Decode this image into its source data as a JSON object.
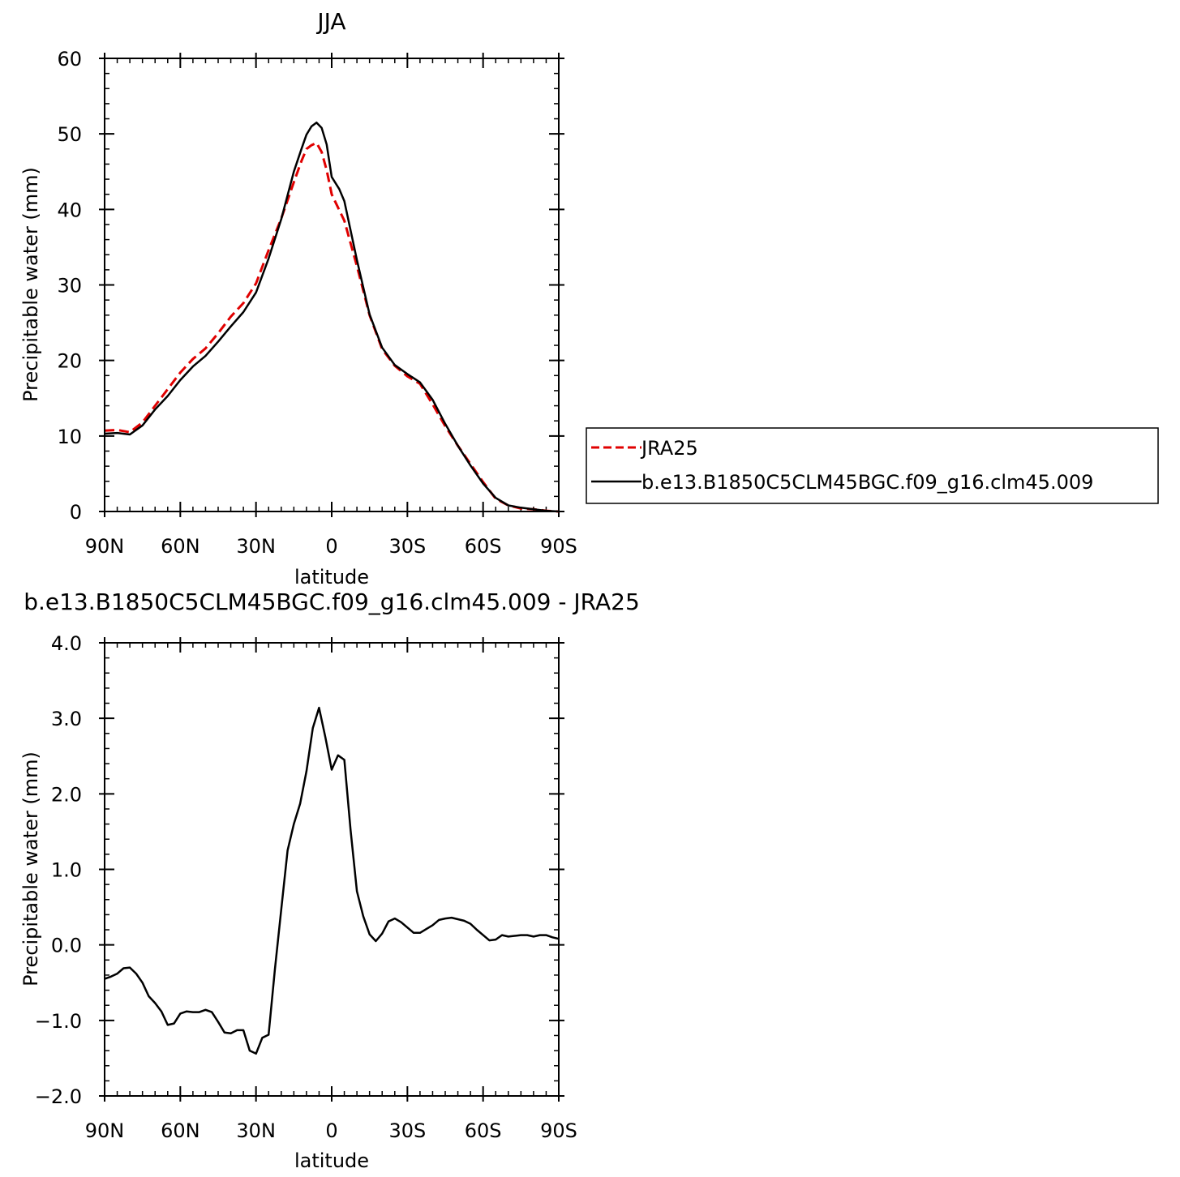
{
  "chart_data": [
    {
      "type": "line",
      "title": "JJA",
      "xlabel": "latitude",
      "ylabel": "Precipitable water (mm)",
      "xlim": [
        90,
        -90
      ],
      "ylim": [
        0,
        60
      ],
      "x_ticks": [
        {
          "value": 90,
          "label": "90N"
        },
        {
          "value": 60,
          "label": "60N"
        },
        {
          "value": 30,
          "label": "30N"
        },
        {
          "value": 0,
          "label": "0"
        },
        {
          "value": -30,
          "label": "30S"
        },
        {
          "value": -60,
          "label": "60S"
        },
        {
          "value": -90,
          "label": "90S"
        }
      ],
      "y_ticks": [
        {
          "value": 0,
          "label": "0"
        },
        {
          "value": 10,
          "label": "10"
        },
        {
          "value": 20,
          "label": "20"
        },
        {
          "value": 30,
          "label": "30"
        },
        {
          "value": 40,
          "label": "40"
        },
        {
          "value": 50,
          "label": "50"
        },
        {
          "value": 60,
          "label": "60"
        }
      ],
      "legend_position": "right",
      "series": [
        {
          "name": "JRA25",
          "color": "#e00000",
          "dash": "dashed",
          "x": [
            90,
            85,
            80,
            75,
            70,
            65,
            60,
            55,
            50,
            45,
            40,
            35,
            30,
            25,
            20,
            15,
            12,
            10,
            8,
            6,
            4,
            2,
            0,
            -5,
            -10,
            -15,
            -20,
            -25,
            -30,
            -35,
            -40,
            -45,
            -50,
            -55,
            -60,
            -65,
            -70,
            -75,
            -80,
            -85,
            -90
          ],
          "y": [
            10.7,
            10.8,
            10.5,
            11.8,
            14.0,
            16.2,
            18.4,
            20.2,
            21.6,
            23.6,
            25.8,
            27.6,
            30.2,
            34.6,
            38.8,
            43.6,
            46.4,
            48.0,
            48.5,
            48.8,
            47.6,
            45.2,
            42.0,
            38.5,
            32.5,
            26.0,
            21.5,
            19.3,
            17.9,
            16.9,
            14.2,
            11.3,
            8.7,
            6.3,
            3.9,
            1.7,
            0.8,
            0.4,
            0.3,
            0.1,
            0.0
          ]
        },
        {
          "name": "b.e13.B1850C5CLM45BGC.f09_g16.clm45.009",
          "color": "#000000",
          "dash": "solid",
          "x": [
            90,
            85,
            80,
            75,
            70,
            65,
            60,
            55,
            50,
            45,
            40,
            35,
            30,
            25,
            20,
            15,
            12,
            10,
            8,
            6,
            4,
            2,
            0,
            -3,
            -5,
            -10,
            -15,
            -20,
            -25,
            -30,
            -35,
            -40,
            -45,
            -50,
            -55,
            -60,
            -65,
            -70,
            -75,
            -80,
            -85,
            -90
          ],
          "y": [
            10.3,
            10.4,
            10.2,
            11.4,
            13.5,
            15.3,
            17.4,
            19.2,
            20.6,
            22.5,
            24.5,
            26.4,
            29.0,
            33.5,
            38.7,
            45.0,
            48.0,
            49.9,
            51.0,
            51.5,
            50.8,
            48.6,
            44.3,
            42.7,
            41.1,
            33.3,
            26.1,
            21.7,
            19.4,
            18.2,
            17.1,
            14.8,
            11.6,
            8.7,
            6.1,
            3.7,
            1.8,
            0.8,
            0.5,
            0.3,
            0.1,
            0.0
          ]
        }
      ]
    },
    {
      "type": "line",
      "title": "b.e13.B1850C5CLM45BGC.f09_g16.clm45.009 - JRA25",
      "xlabel": "latitude",
      "ylabel": "Precipitable water (mm)",
      "xlim": [
        90,
        -90
      ],
      "ylim": [
        -2.0,
        4.0
      ],
      "x_ticks": [
        {
          "value": 90,
          "label": "90N"
        },
        {
          "value": 60,
          "label": "60N"
        },
        {
          "value": 30,
          "label": "30N"
        },
        {
          "value": 0,
          "label": "0"
        },
        {
          "value": -30,
          "label": "30S"
        },
        {
          "value": -60,
          "label": "60S"
        },
        {
          "value": -90,
          "label": "90S"
        }
      ],
      "y_ticks": [
        {
          "value": -2.0,
          "label": "−2.0"
        },
        {
          "value": -1.0,
          "label": "−1.0"
        },
        {
          "value": 0.0,
          "label": "0.0"
        },
        {
          "value": 1.0,
          "label": "1.0"
        },
        {
          "value": 2.0,
          "label": "2.0"
        },
        {
          "value": 3.0,
          "label": "3.0"
        },
        {
          "value": 4.0,
          "label": "4.0"
        }
      ],
      "series": [
        {
          "color": "#000000",
          "dash": "solid",
          "x": [
            90,
            87.5,
            85,
            82.5,
            80,
            77.5,
            75,
            72.5,
            70,
            67.5,
            65,
            62.5,
            60,
            57.5,
            55,
            52.5,
            50,
            47.5,
            45,
            42.5,
            40,
            37.5,
            35,
            32.5,
            30,
            27.5,
            25,
            22.5,
            20,
            17.5,
            15,
            12.5,
            10,
            7.5,
            5,
            2.5,
            0,
            -2.5,
            -5,
            -7.5,
            -10,
            -12.5,
            -15,
            -17.5,
            -20,
            -22.5,
            -25,
            -27.5,
            -30,
            -32.5,
            -35,
            -37.5,
            -40,
            -42.5,
            -45,
            -47.5,
            -50,
            -52.5,
            -55,
            -57.5,
            -60,
            -62.5,
            -65,
            -67.5,
            -70,
            -72.5,
            -75,
            -77.5,
            -80,
            -82.5,
            -85,
            -87.5,
            -90
          ],
          "y": [
            -0.45,
            -0.42,
            -0.38,
            -0.31,
            -0.3,
            -0.38,
            -0.5,
            -0.68,
            -0.77,
            -0.88,
            -1.06,
            -1.04,
            -0.91,
            -0.88,
            -0.89,
            -0.89,
            -0.86,
            -0.89,
            -1.02,
            -1.16,
            -1.17,
            -1.13,
            -1.13,
            -1.4,
            -1.44,
            -1.23,
            -1.19,
            -0.32,
            0.47,
            1.25,
            1.6,
            1.87,
            2.3,
            2.87,
            3.14,
            2.75,
            2.32,
            2.51,
            2.45,
            1.52,
            0.71,
            0.38,
            0.14,
            0.05,
            0.15,
            0.31,
            0.35,
            0.3,
            0.23,
            0.16,
            0.16,
            0.21,
            0.26,
            0.33,
            0.35,
            0.36,
            0.34,
            0.32,
            0.28,
            0.2,
            0.13,
            0.06,
            0.07,
            0.13,
            0.11,
            0.12,
            0.13,
            0.13,
            0.11,
            0.13,
            0.13,
            0.1,
            0.08
          ]
        }
      ]
    }
  ]
}
